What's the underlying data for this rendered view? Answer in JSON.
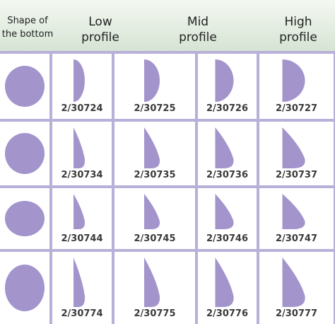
{
  "header": {
    "shape": "Shape of the bottom",
    "low": "Low profile",
    "mid": "Mid profile",
    "high": "High profile"
  },
  "rows": [
    {
      "codes": [
        "2/30724",
        "2/30725",
        "2/30726",
        "2/30727"
      ]
    },
    {
      "codes": [
        "2/30734",
        "2/30735",
        "2/30736",
        "2/30737"
      ]
    },
    {
      "codes": [
        "2/30744",
        "2/30745",
        "2/30746",
        "2/30747"
      ]
    },
    {
      "codes": [
        "2/30774",
        "2/30775",
        "2/30776",
        "2/30777"
      ]
    }
  ]
}
